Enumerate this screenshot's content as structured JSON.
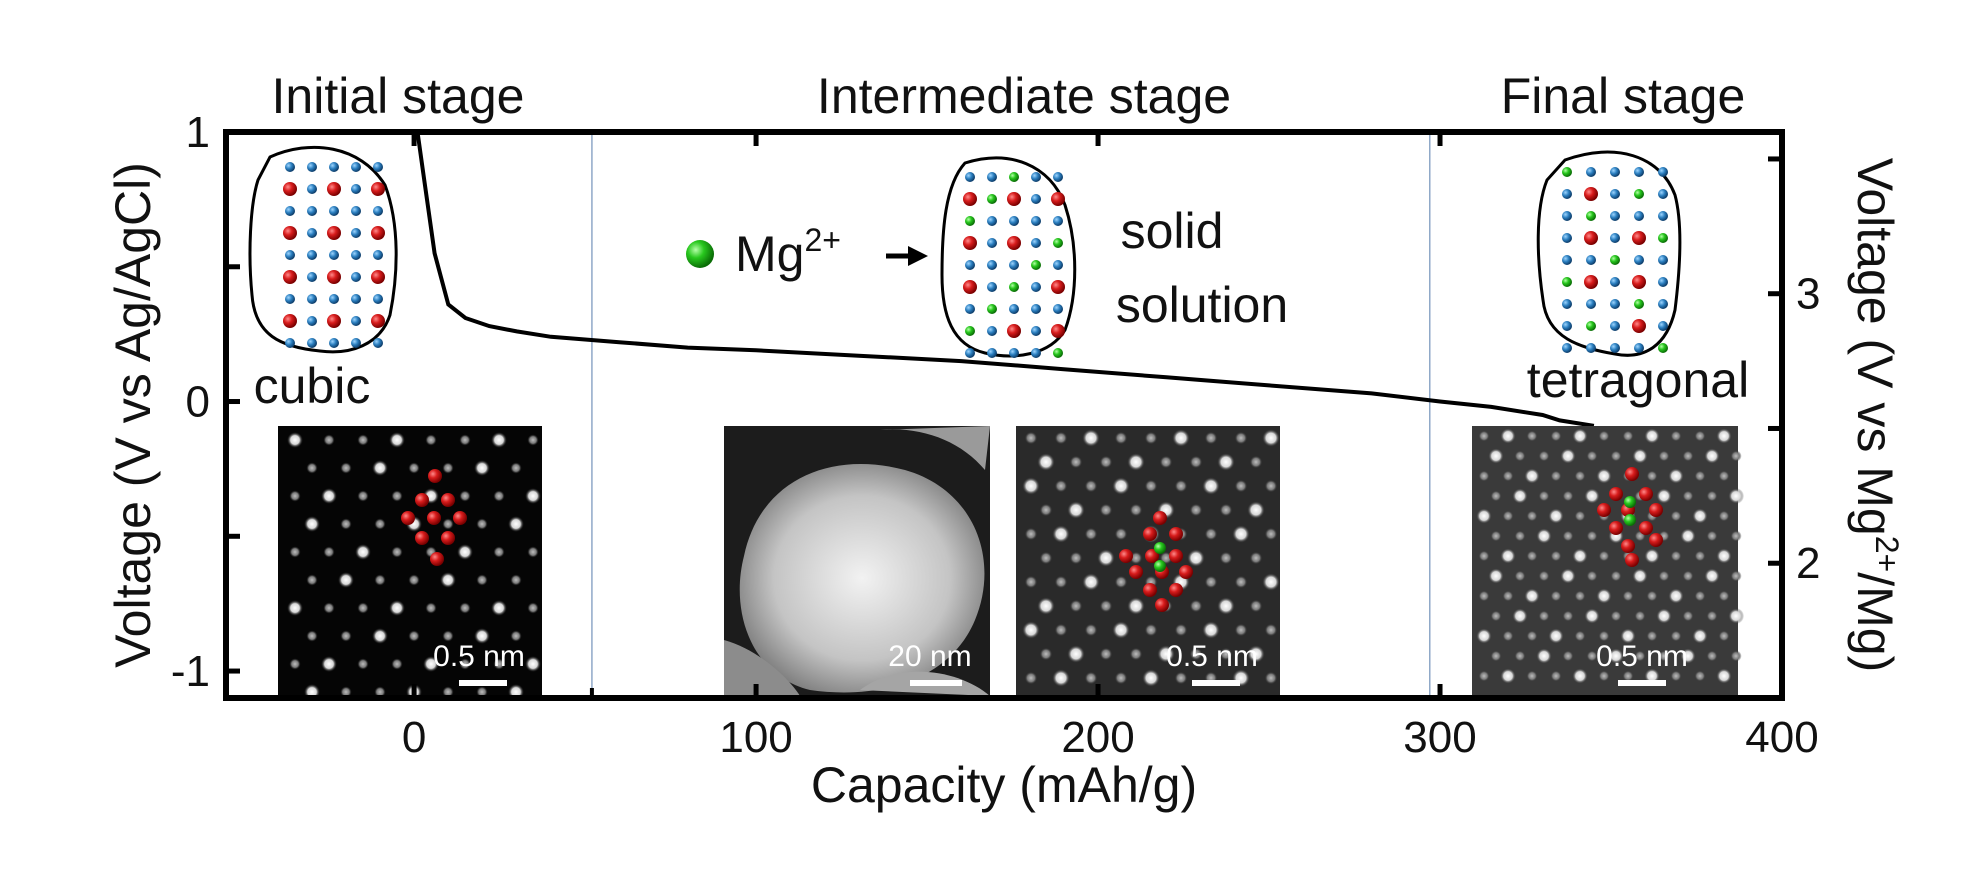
{
  "chart_data": {
    "type": "line",
    "xlabel": "Capacity (mAh/g)",
    "ylabel_left": "Voltage (V vs Ag/AgCl)",
    "ylabel_right": "Voltage (V vs Mg2+/Mg)",
    "xlim": [
      -55,
      400
    ],
    "ylim_left": [
      -1.1,
      1.0
    ],
    "ylim_right": [
      1.5,
      3.6
    ],
    "x_ticks": [
      "0",
      "100",
      "200",
      "300",
      "400"
    ],
    "y_ticks_left": [
      "-1",
      "0",
      "1"
    ],
    "y_ticks_right": [
      "2",
      "3"
    ],
    "grid": false,
    "series": [
      {
        "color": "#000000",
        "x": [
          1,
          3,
          6,
          10,
          15,
          22,
          30,
          40,
          60,
          80,
          100,
          130,
          160,
          190,
          220,
          250,
          280,
          300,
          315,
          325,
          330,
          335,
          345
        ],
        "y": [
          1.0,
          0.82,
          0.55,
          0.36,
          0.31,
          0.28,
          0.26,
          0.24,
          0.22,
          0.2,
          0.19,
          0.17,
          0.15,
          0.12,
          0.09,
          0.06,
          0.03,
          0.0,
          -0.02,
          -0.04,
          -0.05,
          -0.07,
          -0.09
        ]
      }
    ],
    "stage_dividers_x": [
      52,
      297
    ],
    "stages": [
      "Initial stage",
      "Intermediate stage",
      "Final stage"
    ],
    "annotations": {
      "cubic": "cubic",
      "mg_ion": "Mg",
      "mg_charge": "2+",
      "solid": "solid",
      "solution": "solution",
      "tetragonal": "tetragonal",
      "ylabel_right_prefix": "Voltage (V vs Mg",
      "ylabel_right_sup": "2+",
      "ylabel_right_suffix": "/Mg)"
    },
    "scale_bars": [
      "0.5 nm",
      "20 nm",
      "0.5 nm",
      "0.5 nm"
    ]
  }
}
